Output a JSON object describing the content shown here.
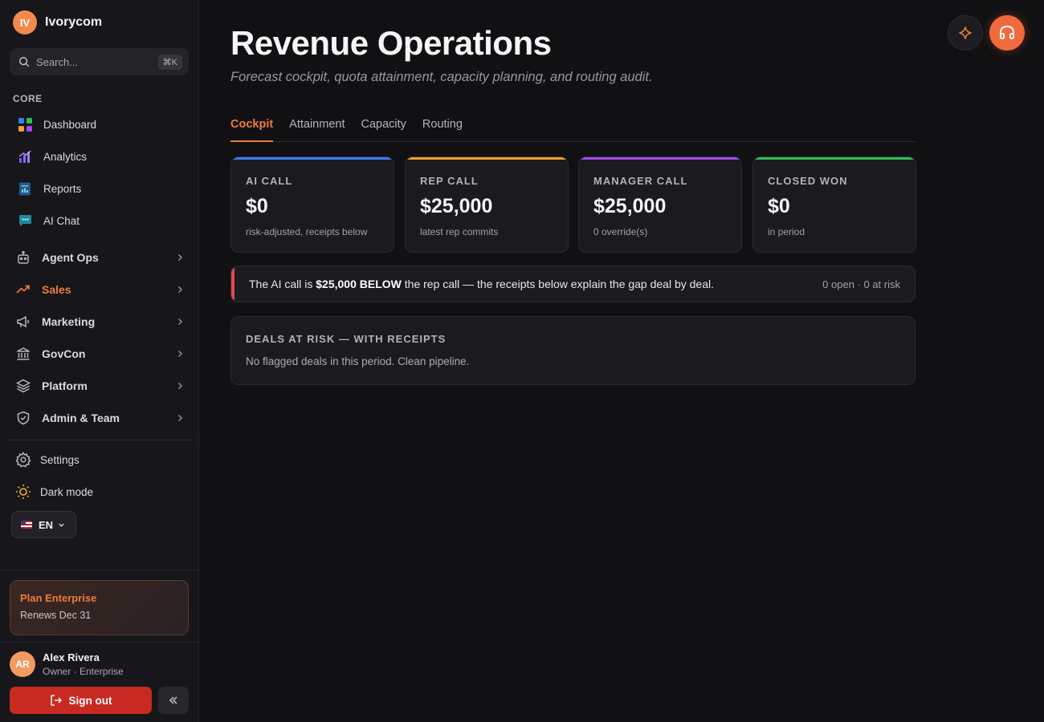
{
  "brand": {
    "initials": "IV",
    "name": "Ivorycom",
    "badge_color": "#f08a4b"
  },
  "search": {
    "placeholder": "Search...",
    "shortcut": "⌘K"
  },
  "sidebar": {
    "core_label": "CORE",
    "core_items": [
      {
        "label": "Dashboard",
        "icon": "grid-icon"
      },
      {
        "label": "Analytics",
        "icon": "bar-chart-icon"
      },
      {
        "label": "Reports",
        "icon": "report-icon"
      },
      {
        "label": "AI Chat",
        "icon": "chat-icon"
      }
    ],
    "groups": [
      {
        "label": "Agent Ops",
        "icon": "robot-icon",
        "active": false
      },
      {
        "label": "Sales",
        "icon": "trending-up-icon",
        "active": true
      },
      {
        "label": "Marketing",
        "icon": "megaphone-icon",
        "active": false
      },
      {
        "label": "GovCon",
        "icon": "bank-icon",
        "active": false
      },
      {
        "label": "Platform",
        "icon": "layers-icon",
        "active": false
      },
      {
        "label": "Admin & Team",
        "icon": "shield-icon",
        "active": false
      }
    ],
    "settings_label": "Settings",
    "dark_mode_label": "Dark mode",
    "language": "EN",
    "plan": {
      "title": "Plan Enterprise",
      "renews": "Renews Dec 31"
    },
    "user": {
      "initials": "AR",
      "name": "Alex Rivera",
      "role": "Owner · Enterprise"
    },
    "sign_out_label": "Sign out"
  },
  "main": {
    "title": "Revenue Operations",
    "subtitle": "Forecast cockpit, quota attainment, capacity planning, and routing audit.",
    "tabs": [
      {
        "label": "Cockpit",
        "active": true
      },
      {
        "label": "Attainment",
        "active": false
      },
      {
        "label": "Capacity",
        "active": false
      },
      {
        "label": "Routing",
        "active": false
      }
    ],
    "cards": [
      {
        "label": "AI CALL",
        "value": "$0",
        "sub": "risk-adjusted, receipts below",
        "color": "#3b7cf0"
      },
      {
        "label": "REP CALL",
        "value": "$25,000",
        "sub": "latest rep commits",
        "color": "#f0a02a"
      },
      {
        "label": "MANAGER CALL",
        "value": "$25,000",
        "sub": "0 override(s)",
        "color": "#a04df0"
      },
      {
        "label": "CLOSED WON",
        "value": "$0",
        "sub": "in period",
        "color": "#2fbf5a"
      }
    ],
    "alert": {
      "prefix": "The AI call is ",
      "highlight": "$25,000 BELOW",
      "suffix": " the rep call — the receipts below explain the gap deal by deal.",
      "meta": "0 open · 0 at risk"
    },
    "risk": {
      "title": "DEALS AT RISK — WITH RECEIPTS",
      "empty": "No flagged deals in this period. Clean pipeline."
    }
  },
  "accent": "#f07a3c",
  "danger": "#c82a22"
}
